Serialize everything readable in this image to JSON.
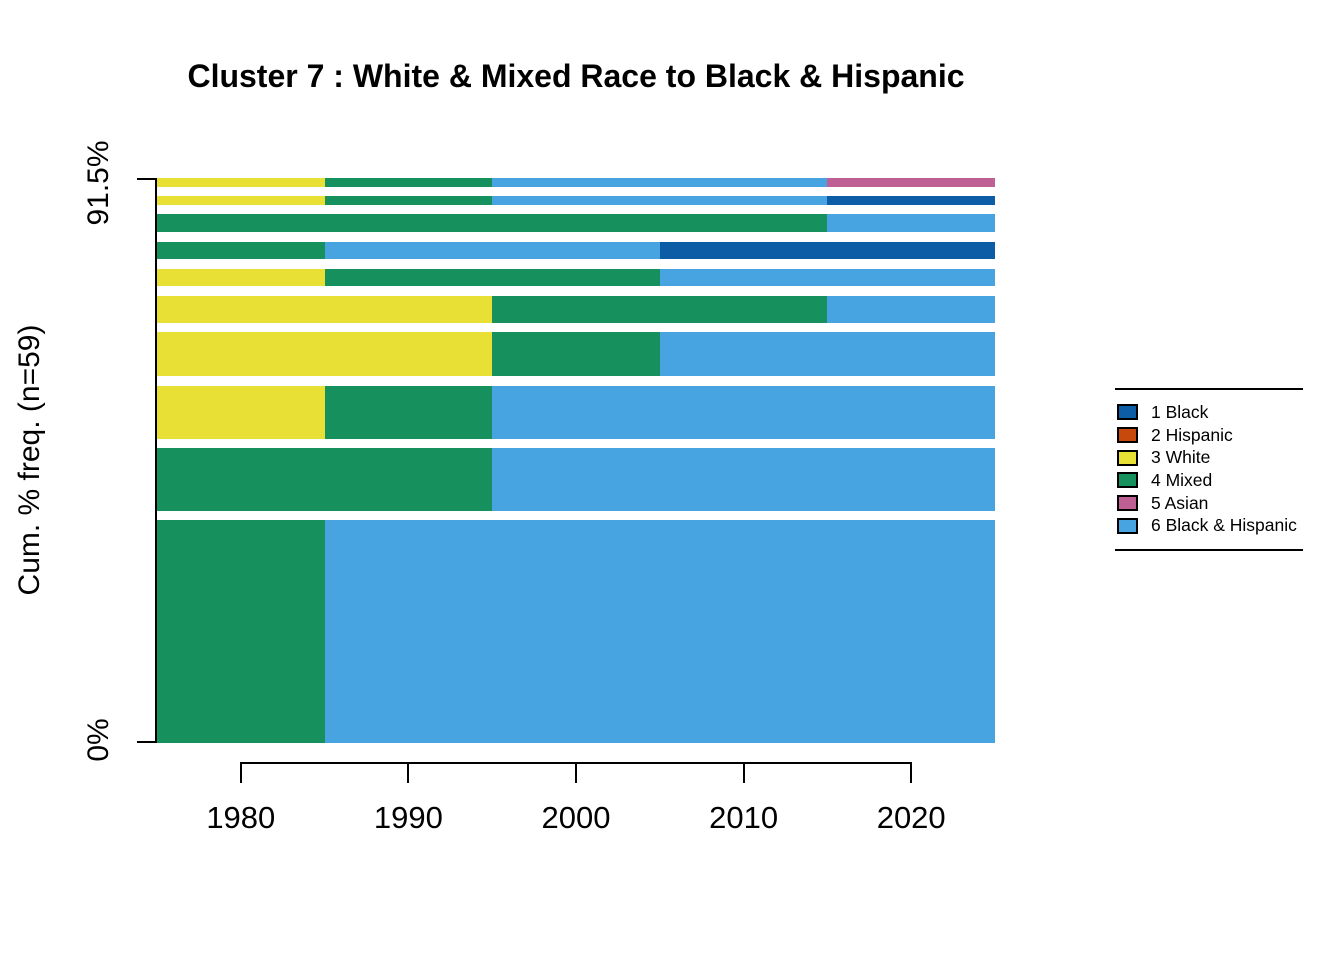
{
  "chart_data": {
    "type": "bar",
    "subtype": "sequence-frequency-plot-horizontal-stacked",
    "title": "Cluster 7 : White & Mixed Race to Black & Hispanic",
    "ylabel": "Cum. % freq. (n=59)",
    "xlabel": "",
    "n_total": 59,
    "n_shown": 54,
    "y_axis_ticks": {
      "top": "91.5%",
      "bottom": "0%"
    },
    "x_domain": [
      1975,
      2025
    ],
    "x_ticks": [
      "1980",
      "1990",
      "2000",
      "2010",
      "2020"
    ],
    "grid": "off",
    "legend_position": "right",
    "states": [
      {
        "id": "black",
        "label": "1 Black",
        "color": "#0d5ca6"
      },
      {
        "id": "hispanic",
        "label": "2 Hispanic",
        "color": "#c7490b"
      },
      {
        "id": "white",
        "label": "3 White",
        "color": "#e9e036"
      },
      {
        "id": "mixed",
        "label": "4 Mixed",
        "color": "#16905c"
      },
      {
        "id": "asian",
        "label": "5 Asian",
        "color": "#bf6094"
      },
      {
        "id": "black_hispanic",
        "label": "6 Black & Hispanic",
        "color": "#48a3e1"
      }
    ],
    "rows_top_to_bottom": [
      {
        "count": 1,
        "pct": 1.7,
        "segments": [
          {
            "state": "white",
            "from": 1975,
            "to": 1985
          },
          {
            "state": "mixed",
            "from": 1985,
            "to": 1995
          },
          {
            "state": "black_hispanic",
            "from": 1995,
            "to": 2015
          },
          {
            "state": "asian",
            "from": 2015,
            "to": 2025
          }
        ]
      },
      {
        "count": 1,
        "pct": 1.7,
        "segments": [
          {
            "state": "white",
            "from": 1975,
            "to": 1985
          },
          {
            "state": "mixed",
            "from": 1985,
            "to": 1995
          },
          {
            "state": "black_hispanic",
            "from": 1995,
            "to": 2015
          },
          {
            "state": "black",
            "from": 2015,
            "to": 2025
          }
        ]
      },
      {
        "count": 2,
        "pct": 3.4,
        "segments": [
          {
            "state": "mixed",
            "from": 1975,
            "to": 2015
          },
          {
            "state": "black_hispanic",
            "from": 2015,
            "to": 2025
          }
        ]
      },
      {
        "count": 2,
        "pct": 3.4,
        "segments": [
          {
            "state": "mixed",
            "from": 1975,
            "to": 1985
          },
          {
            "state": "black_hispanic",
            "from": 1985,
            "to": 2005
          },
          {
            "state": "black",
            "from": 2005,
            "to": 2025
          }
        ]
      },
      {
        "count": 2,
        "pct": 3.4,
        "segments": [
          {
            "state": "white",
            "from": 1975,
            "to": 1985
          },
          {
            "state": "mixed",
            "from": 1985,
            "to": 2005
          },
          {
            "state": "black_hispanic",
            "from": 2005,
            "to": 2025
          }
        ]
      },
      {
        "count": 3,
        "pct": 5.1,
        "segments": [
          {
            "state": "white",
            "from": 1975,
            "to": 1995
          },
          {
            "state": "mixed",
            "from": 1995,
            "to": 2015
          },
          {
            "state": "black_hispanic",
            "from": 2015,
            "to": 2025
          }
        ]
      },
      {
        "count": 5,
        "pct": 8.5,
        "segments": [
          {
            "state": "white",
            "from": 1975,
            "to": 1995
          },
          {
            "state": "mixed",
            "from": 1995,
            "to": 2005
          },
          {
            "state": "black_hispanic",
            "from": 2005,
            "to": 2025
          }
        ]
      },
      {
        "count": 6,
        "pct": 10.2,
        "segments": [
          {
            "state": "white",
            "from": 1975,
            "to": 1985
          },
          {
            "state": "mixed",
            "from": 1985,
            "to": 1995
          },
          {
            "state": "black_hispanic",
            "from": 1995,
            "to": 2025
          }
        ]
      },
      {
        "count": 7,
        "pct": 11.9,
        "segments": [
          {
            "state": "mixed",
            "from": 1975,
            "to": 1995
          },
          {
            "state": "black_hispanic",
            "from": 1995,
            "to": 2025
          }
        ]
      },
      {
        "count": 25,
        "pct": 42.4,
        "segments": [
          {
            "state": "mixed",
            "from": 1975,
            "to": 1985
          },
          {
            "state": "black_hispanic",
            "from": 1985,
            "to": 2025
          }
        ]
      }
    ]
  }
}
